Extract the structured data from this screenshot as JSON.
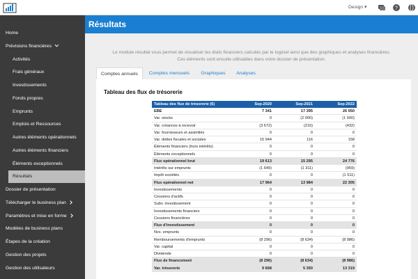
{
  "topbar": {
    "menu": "Design ▾"
  },
  "sidebar": {
    "items": [
      {
        "label": "Home"
      },
      {
        "label": "Prévisions financières",
        "arrow": "down"
      },
      {
        "label": "Activités",
        "indent": true
      },
      {
        "label": "Frais généraux",
        "indent": true
      },
      {
        "label": "Investissements",
        "indent": true
      },
      {
        "label": "Fonds propres",
        "indent": true
      },
      {
        "label": "Emprunts",
        "indent": true
      },
      {
        "label": "Emplois et Ressources",
        "indent": true
      },
      {
        "label": "Autres éléments opérationnels",
        "indent": true
      },
      {
        "label": "Autres éléments financiers",
        "indent": true
      },
      {
        "label": "Éléments exceptionnels",
        "indent": true
      },
      {
        "label": "Résultats",
        "indent": true,
        "active": true
      },
      {
        "label": "Dossier de présentation"
      },
      {
        "label": "Télécharger le business plan",
        "arrow": "right"
      },
      {
        "label": "Paramètres et mise en forme",
        "arrow": "right"
      },
      {
        "label": "Modèles de business plans"
      },
      {
        "label": "Étapes de la création"
      },
      {
        "label": "Gestion des projets"
      },
      {
        "label": "Gestion des utilisateurs"
      }
    ]
  },
  "header": {
    "title": "Résultats"
  },
  "intro": "Le module résultat vous permet de visualiser les états financiers calculés par le logiciel ainsi que des graphiques et analyses financières. Ces éléments sont ensuite utilisables dans votre dossier de présentation.",
  "tabs": [
    {
      "label": "Comptes annuels",
      "active": true
    },
    {
      "label": "Comptes mensuels"
    },
    {
      "label": "Graphiques"
    },
    {
      "label": "Analyses"
    }
  ],
  "table": {
    "title": "Tableau des flux de trésorerie",
    "columns": [
      "Tableau des flux de trésorerie (€)",
      "Sep-2020",
      "Sep-2021",
      "Sep-2022"
    ],
    "rows": [
      {
        "cells": [
          "EBE",
          "7 341",
          "17 395",
          "26 050"
        ],
        "bold": true
      },
      {
        "cells": [
          "Var. stocks",
          "0",
          "(2 000)",
          "(1 000)"
        ]
      },
      {
        "cells": [
          "Var. créances à recevoir",
          "(3 672)",
          "(216)",
          "(432)"
        ]
      },
      {
        "cells": [
          "Var. fournisseurs et assimilés",
          "0",
          "0",
          "0"
        ]
      },
      {
        "cells": [
          "Var. dettes fiscales et sociales",
          "15 944",
          "116",
          "158"
        ]
      },
      {
        "cells": [
          "Éléments financiers (hors intérêts)",
          "0",
          "0",
          "0"
        ]
      },
      {
        "cells": [
          "Éléments exceptionnels",
          "0",
          "0",
          "0"
        ]
      },
      {
        "cells": [
          "Flux opérationnel brut",
          "19 613",
          "15 295",
          "24 776"
        ],
        "bold": true,
        "highlight": true
      },
      {
        "cells": [
          "Intérêts sur emprunts",
          "(1 649)",
          "(1 311)",
          "(959)"
        ]
      },
      {
        "cells": [
          "Impôt sociétés",
          "0",
          "0",
          "(1 511)"
        ]
      },
      {
        "cells": [
          "Flux opérationnel net",
          "17 964",
          "13 984",
          "22 305"
        ],
        "bold": true,
        "highlight": true
      },
      {
        "cells": [
          "Investissements",
          "0",
          "0",
          "0"
        ]
      },
      {
        "cells": [
          "Cessions d'actifs",
          "0",
          "0",
          "0"
        ]
      },
      {
        "cells": [
          "Subv. investissement",
          "0",
          "0",
          "0"
        ]
      },
      {
        "cells": [
          "Investissements financiers",
          "0",
          "0",
          "0"
        ]
      },
      {
        "cells": [
          "Cessions financières",
          "0",
          "0",
          "0"
        ]
      },
      {
        "cells": [
          "Flux d'investissement",
          "0",
          "0",
          "0"
        ],
        "bold": true,
        "highlight": true
      },
      {
        "cells": [
          "Nvx. emprunts",
          "0",
          "0",
          "0"
        ]
      },
      {
        "cells": [
          "Remboursements d'emprunts",
          "(8 296)",
          "(8 634)",
          "(8 986)"
        ]
      },
      {
        "cells": [
          "Var. capital",
          "0",
          "0",
          "0"
        ]
      },
      {
        "cells": [
          "Dividende",
          "0",
          "0",
          "0"
        ]
      },
      {
        "cells": [
          "Flux de financement",
          "(8 296)",
          "(8 634)",
          "(8 986)"
        ],
        "bold": true,
        "highlight": true
      },
      {
        "cells": [
          "Var. trésorerie",
          "9 668",
          "5 350",
          "13 319"
        ],
        "bold": true,
        "highlight": true
      }
    ]
  }
}
